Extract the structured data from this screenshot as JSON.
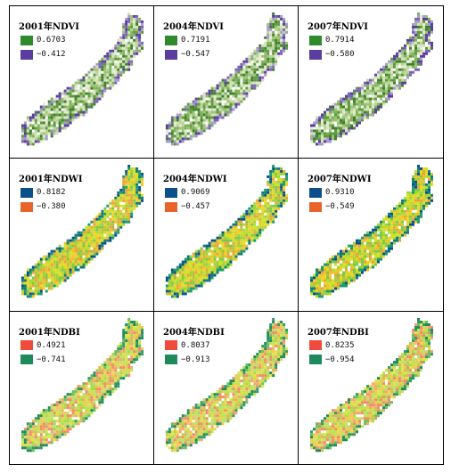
{
  "panels": [
    {
      "title": "2001年NDVI",
      "max": "0.6703",
      "min": "−0.412",
      "palette": "ndvi_green",
      "max_color": "#2f8a2c",
      "min_color": "#5a3d9e"
    },
    {
      "title": "2004年NDVI",
      "max": "0.7191",
      "min": "−0.547",
      "palette": "ndvi_green",
      "max_color": "#2f8a2c",
      "min_color": "#5a3d9e"
    },
    {
      "title": "2007年NDVI",
      "max": "0.7914",
      "min": "−0.580",
      "palette": "ndvi_green",
      "max_color": "#2f8a2c",
      "min_color": "#5a3d9e"
    },
    {
      "title": "2001年NDWI",
      "max": "0.8182",
      "min": "−0.380",
      "palette": "ndwi",
      "max_color": "#0d4f88",
      "min_color": "#e8632a"
    },
    {
      "title": "2004年NDWI",
      "max": "0.9069",
      "min": "−0.457",
      "palette": "ndwi",
      "max_color": "#0d4f88",
      "min_color": "#e8632a"
    },
    {
      "title": "2007年NDWI",
      "max": "0.9310",
      "min": "−0.549",
      "palette": "ndwi",
      "max_color": "#0d4f88",
      "min_color": "#e8632a"
    },
    {
      "title": "2001年NDBI",
      "max": "0.4921",
      "min": "−0.741",
      "palette": "ndbi",
      "max_color": "#ef4b3c",
      "min_color": "#1f8a5b"
    },
    {
      "title": "2004年NDBI",
      "max": "0.8037",
      "min": "−0.913",
      "palette": "ndbi",
      "max_color": "#ef4b3c",
      "min_color": "#1f8a5b"
    },
    {
      "title": "2007年NDBI",
      "max": "0.8235",
      "min": "−0.954",
      "palette": "ndbi",
      "max_color": "#ef4b3c",
      "min_color": "#1f8a5b"
    }
  ]
}
